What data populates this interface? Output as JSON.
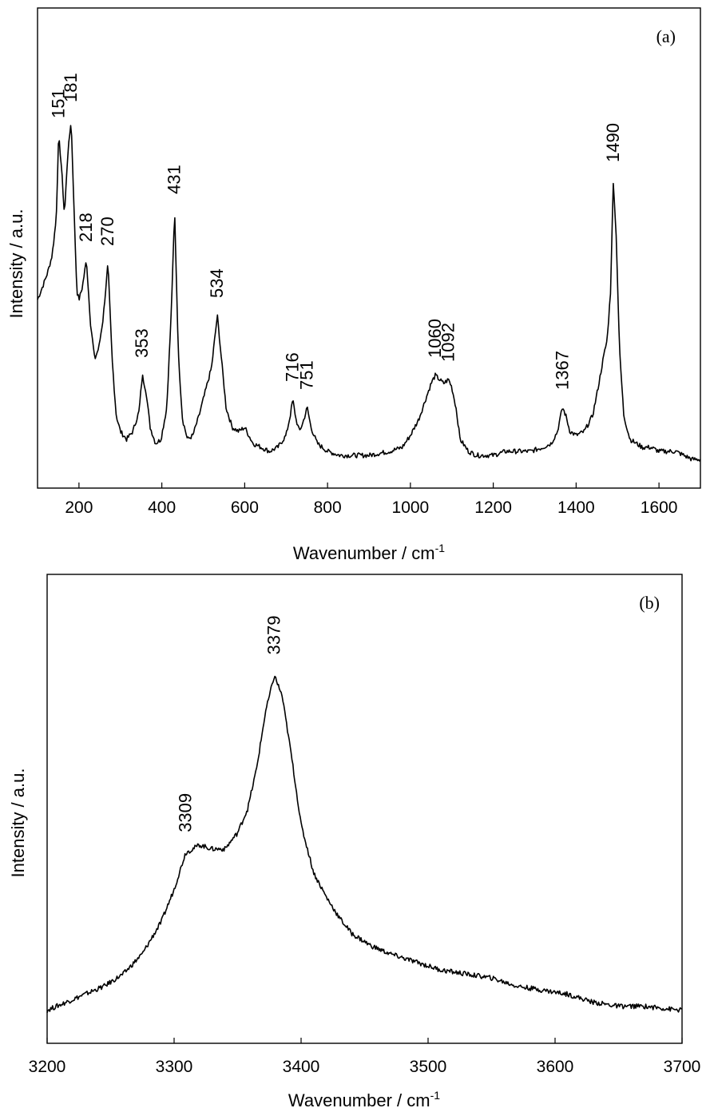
{
  "colors": {
    "line": "#000000",
    "background": "#ffffff"
  },
  "chart_data": [
    {
      "type": "line",
      "panel_label": "(a)",
      "xlabel": "Wavenumber / cm",
      "xlabel_sup": "-1",
      "ylabel": "Intensity / a.u.",
      "xlim": [
        100,
        1700
      ],
      "ylim": [
        0,
        1
      ],
      "xticks": [
        200,
        400,
        600,
        800,
        1000,
        1200,
        1400,
        1600
      ],
      "yticks": [],
      "grid": false,
      "legend": "none",
      "peaks": [
        {
          "label": "151",
          "x": 151,
          "y": 0.84
        },
        {
          "label": "181",
          "x": 181,
          "y": 0.88
        },
        {
          "label": "218",
          "x": 218,
          "y": 0.53
        },
        {
          "label": "270",
          "x": 270,
          "y": 0.52
        },
        {
          "label": "353",
          "x": 353,
          "y": 0.24
        },
        {
          "label": "431",
          "x": 431,
          "y": 0.65
        },
        {
          "label": "534",
          "x": 534,
          "y": 0.39
        },
        {
          "label": "716",
          "x": 716,
          "y": 0.18
        },
        {
          "label": "751",
          "x": 751,
          "y": 0.16
        },
        {
          "label": "1060",
          "x": 1060,
          "y": 0.24
        },
        {
          "label": "1092",
          "x": 1092,
          "y": 0.23
        },
        {
          "label": "1367",
          "x": 1367,
          "y": 0.16
        },
        {
          "label": "1490",
          "x": 1490,
          "y": 0.73
        }
      ],
      "series": [
        {
          "x": [
            100,
            115,
            125,
            135,
            145,
            151,
            158,
            165,
            172,
            181,
            188,
            195,
            200,
            208,
            218,
            228,
            238,
            248,
            258,
            270,
            280,
            290,
            300,
            315,
            330,
            345,
            353,
            362,
            372,
            385,
            398,
            412,
            422,
            431,
            440,
            450,
            462,
            475,
            490,
            505,
            520,
            534,
            545,
            555,
            570,
            585,
            600,
            620,
            640,
            660,
            680,
            700,
            710,
            716,
            724,
            732,
            740,
            751,
            760,
            775,
            800,
            830,
            860,
            900,
            950,
            980,
            1000,
            1020,
            1040,
            1050,
            1060,
            1070,
            1080,
            1092,
            1100,
            1110,
            1120,
            1140,
            1160,
            1180,
            1200,
            1230,
            1260,
            1290,
            1320,
            1340,
            1355,
            1367,
            1375,
            1385,
            1400,
            1420,
            1440,
            1455,
            1465,
            1475,
            1483,
            1490,
            1497,
            1505,
            1515,
            1530,
            1545,
            1560,
            1580,
            1600,
            1620,
            1640,
            1660,
            1680,
            1700
          ],
          "y": [
            0.43,
            0.47,
            0.5,
            0.54,
            0.63,
            0.84,
            0.76,
            0.64,
            0.78,
            0.88,
            0.66,
            0.45,
            0.43,
            0.46,
            0.53,
            0.37,
            0.28,
            0.31,
            0.38,
            0.52,
            0.28,
            0.14,
            0.1,
            0.08,
            0.1,
            0.15,
            0.24,
            0.2,
            0.11,
            0.07,
            0.08,
            0.16,
            0.38,
            0.65,
            0.29,
            0.13,
            0.08,
            0.09,
            0.14,
            0.2,
            0.26,
            0.39,
            0.27,
            0.16,
            0.11,
            0.1,
            0.11,
            0.07,
            0.06,
            0.05,
            0.06,
            0.09,
            0.14,
            0.18,
            0.13,
            0.1,
            0.12,
            0.16,
            0.11,
            0.07,
            0.05,
            0.04,
            0.04,
            0.04,
            0.05,
            0.06,
            0.09,
            0.13,
            0.19,
            0.22,
            0.24,
            0.23,
            0.22,
            0.23,
            0.21,
            0.16,
            0.08,
            0.05,
            0.04,
            0.04,
            0.04,
            0.05,
            0.05,
            0.05,
            0.06,
            0.07,
            0.1,
            0.16,
            0.14,
            0.1,
            0.09,
            0.1,
            0.14,
            0.22,
            0.28,
            0.33,
            0.45,
            0.73,
            0.58,
            0.3,
            0.14,
            0.08,
            0.07,
            0.06,
            0.06,
            0.05,
            0.05,
            0.05,
            0.04,
            0.03,
            0.03
          ]
        }
      ]
    },
    {
      "type": "line",
      "panel_label": "(b)",
      "xlabel": "Wavenumber / cm",
      "xlabel_sup": "-1",
      "ylabel": "Intensity / a.u.",
      "xlim": [
        3200,
        3700
      ],
      "ylim": [
        0,
        1
      ],
      "xticks": [
        3200,
        3300,
        3400,
        3500,
        3600,
        3700
      ],
      "yticks": [],
      "grid": false,
      "legend": "none",
      "peaks": [
        {
          "label": "3309",
          "x": 3309,
          "y": 0.45
        },
        {
          "label": "3379",
          "x": 3379,
          "y": 0.89
        }
      ],
      "series": [
        {
          "x": [
            3200,
            3215,
            3230,
            3245,
            3260,
            3275,
            3290,
            3300,
            3309,
            3320,
            3330,
            3340,
            3350,
            3358,
            3365,
            3372,
            3379,
            3385,
            3392,
            3400,
            3410,
            3420,
            3430,
            3440,
            3455,
            3470,
            3490,
            3510,
            3530,
            3550,
            3570,
            3590,
            3610,
            3630,
            3650,
            3670,
            3700
          ],
          "y": [
            0.06,
            0.08,
            0.1,
            0.12,
            0.15,
            0.2,
            0.28,
            0.36,
            0.45,
            0.47,
            0.46,
            0.46,
            0.5,
            0.56,
            0.66,
            0.8,
            0.89,
            0.84,
            0.7,
            0.52,
            0.4,
            0.34,
            0.29,
            0.25,
            0.22,
            0.2,
            0.18,
            0.16,
            0.15,
            0.14,
            0.12,
            0.11,
            0.1,
            0.08,
            0.07,
            0.07,
            0.06
          ]
        }
      ]
    }
  ]
}
